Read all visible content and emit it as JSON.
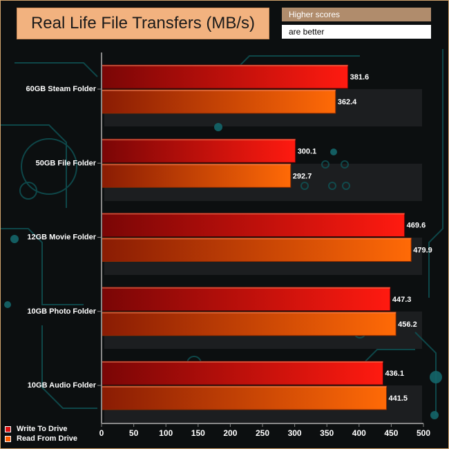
{
  "header": {
    "title": "Real Life File Transfers (MB/s)",
    "note_top": "Higher scores",
    "note_bottom": "are better"
  },
  "colors": {
    "series_write": "#ee1111",
    "series_read": "#ff5a00",
    "axis": "#888888"
  },
  "chart_data": {
    "type": "bar",
    "orientation": "horizontal",
    "title": "Real Life File Transfers (MB/s)",
    "categories": [
      "60GB Steam Folder",
      "50GB File Folder",
      "12GB Movie Folder",
      "10GB Photo Folder",
      "10GB Audio Folder"
    ],
    "series": [
      {
        "name": "Write To  Drive",
        "values": [
          381.6,
          300.1,
          469.6,
          447.3,
          436.1
        ]
      },
      {
        "name": "Read From  Drive",
        "values": [
          362.4,
          292.7,
          479.9,
          456.2,
          441.5
        ]
      }
    ],
    "xlim": [
      0,
      500
    ],
    "xticks": [
      "0",
      "50",
      "100",
      "150",
      "200",
      "250",
      "300",
      "350",
      "400",
      "450",
      "500"
    ],
    "grid": false,
    "legend_position": "bottom-left"
  }
}
